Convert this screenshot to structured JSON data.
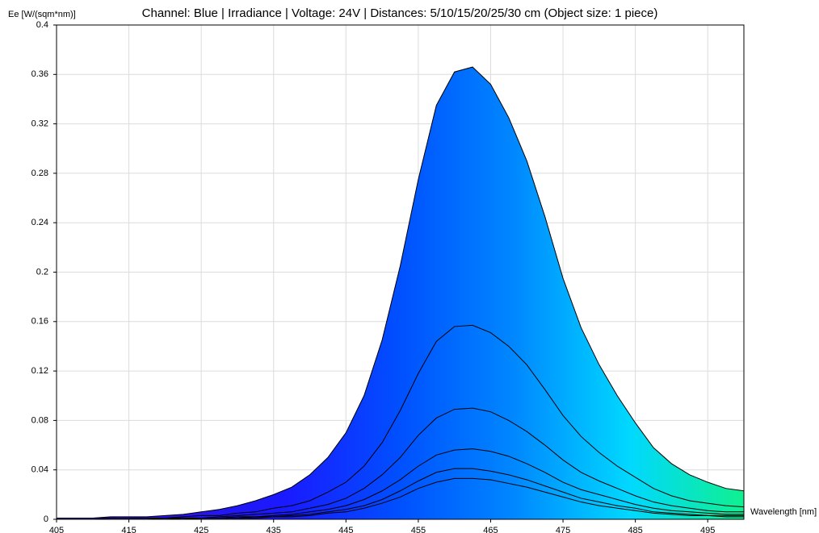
{
  "chart_data": {
    "type": "area-lines",
    "title": "Channel: Blue | Irradiance | Voltage: 24V | Distances: 5/10/15/20/25/30 cm (Object size: 1 piece)",
    "xlabel": "Wavelength [nm]",
    "ylabel": "Ee [W/(sqm*nm)]",
    "xlim": [
      405,
      500
    ],
    "ylim": [
      0,
      0.4
    ],
    "xticks": [
      405,
      415,
      425,
      435,
      445,
      455,
      465,
      475,
      485,
      495
    ],
    "yticks": [
      0,
      0.04,
      0.08,
      0.12,
      0.16,
      0.2,
      0.24,
      0.28,
      0.32,
      0.36,
      0.4
    ],
    "grid": true,
    "line_color": "#000000",
    "fill_gradient": [
      "#3d1adb",
      "#2a14e8",
      "#1a1aff",
      "#0050ff",
      "#0088ff",
      "#00d8ff",
      "#10f090"
    ],
    "x": [
      405,
      407.5,
      410,
      412.5,
      415,
      417.5,
      420,
      422.5,
      425,
      427.5,
      430,
      432.5,
      435,
      437.5,
      440,
      442.5,
      445,
      447.5,
      450,
      452.5,
      455,
      457.5,
      460,
      462.5,
      465,
      467.5,
      470,
      472.5,
      475,
      477.5,
      480,
      482.5,
      485,
      487.5,
      490,
      492.5,
      495,
      497.5,
      500
    ],
    "series": [
      {
        "values": [
          0.001,
          0.001,
          0.001,
          0.002,
          0.002,
          0.002,
          0.003,
          0.004,
          0.006,
          0.008,
          0.011,
          0.015,
          0.02,
          0.026,
          0.036,
          0.05,
          0.07,
          0.1,
          0.145,
          0.205,
          0.275,
          0.335,
          0.362,
          0.366,
          0.352,
          0.325,
          0.29,
          0.245,
          0.195,
          0.155,
          0.125,
          0.1,
          0.078,
          0.058,
          0.045,
          0.036,
          0.03,
          0.025,
          0.023
        ]
      },
      {
        "values": [
          0,
          0,
          0,
          0.001,
          0.001,
          0.001,
          0.001,
          0.002,
          0.003,
          0.003,
          0.005,
          0.006,
          0.009,
          0.011,
          0.015,
          0.022,
          0.03,
          0.043,
          0.062,
          0.088,
          0.118,
          0.144,
          0.156,
          0.157,
          0.151,
          0.14,
          0.125,
          0.105,
          0.084,
          0.067,
          0.054,
          0.043,
          0.034,
          0.025,
          0.019,
          0.015,
          0.013,
          0.011,
          0.01
        ]
      },
      {
        "values": [
          0,
          0,
          0,
          0,
          0,
          0,
          0.001,
          0.001,
          0.001,
          0.002,
          0.003,
          0.004,
          0.005,
          0.006,
          0.009,
          0.012,
          0.017,
          0.025,
          0.036,
          0.05,
          0.068,
          0.082,
          0.089,
          0.09,
          0.087,
          0.08,
          0.071,
          0.06,
          0.048,
          0.038,
          0.031,
          0.025,
          0.019,
          0.014,
          0.011,
          0.009,
          0.007,
          0.006,
          0.006
        ]
      },
      {
        "values": [
          0,
          0,
          0,
          0,
          0,
          0,
          0,
          0.001,
          0.001,
          0.001,
          0.002,
          0.002,
          0.003,
          0.004,
          0.006,
          0.008,
          0.011,
          0.016,
          0.023,
          0.032,
          0.043,
          0.052,
          0.056,
          0.057,
          0.055,
          0.051,
          0.045,
          0.038,
          0.03,
          0.024,
          0.02,
          0.016,
          0.012,
          0.009,
          0.007,
          0.006,
          0.005,
          0.004,
          0.004
        ]
      },
      {
        "values": [
          0,
          0,
          0,
          0,
          0,
          0,
          0,
          0,
          0.001,
          0.001,
          0.001,
          0.002,
          0.002,
          0.003,
          0.004,
          0.006,
          0.008,
          0.011,
          0.016,
          0.023,
          0.031,
          0.038,
          0.041,
          0.041,
          0.039,
          0.036,
          0.032,
          0.027,
          0.022,
          0.017,
          0.014,
          0.011,
          0.009,
          0.006,
          0.005,
          0.004,
          0.003,
          0.003,
          0.003
        ]
      },
      {
        "values": [
          0,
          0,
          0,
          0,
          0,
          0,
          0,
          0,
          0.001,
          0.001,
          0.001,
          0.001,
          0.002,
          0.002,
          0.003,
          0.005,
          0.006,
          0.009,
          0.013,
          0.018,
          0.025,
          0.03,
          0.033,
          0.033,
          0.032,
          0.029,
          0.026,
          0.022,
          0.018,
          0.014,
          0.011,
          0.009,
          0.007,
          0.005,
          0.004,
          0.003,
          0.003,
          0.002,
          0.002
        ]
      }
    ]
  }
}
